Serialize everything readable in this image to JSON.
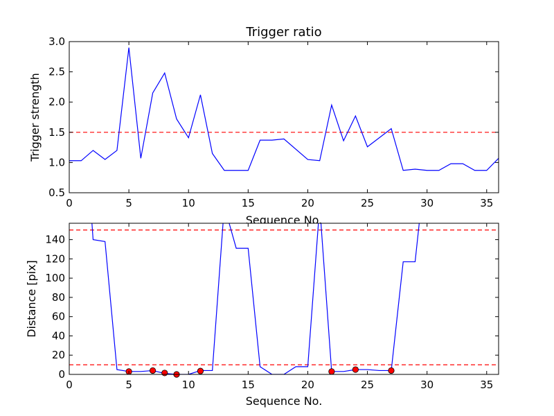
{
  "chart_data": [
    {
      "type": "line",
      "title": "Trigger ratio",
      "xlabel": "Sequence No.",
      "ylabel": "Trigger strength",
      "xlim": [
        0,
        36
      ],
      "ylim": [
        0.5,
        3.0
      ],
      "xticks": [
        0,
        5,
        10,
        15,
        20,
        25,
        30,
        35
      ],
      "xtick_labels": [
        "0",
        "5",
        "10",
        "15",
        "20",
        "25",
        "30",
        "35"
      ],
      "yticks": [
        0.5,
        1.0,
        1.5,
        2.0,
        2.5,
        3.0
      ],
      "ytick_labels": [
        "0.5",
        "1.0",
        "1.5",
        "2.0",
        "2.5",
        "3.0"
      ],
      "grid": false,
      "series": [
        {
          "color": "#0000ff",
          "style": "line",
          "x": [
            0,
            1,
            2,
            3,
            4,
            5,
            6,
            7,
            8,
            9,
            10,
            11,
            12,
            13,
            14,
            15,
            16,
            17,
            18,
            20,
            21,
            22,
            23,
            24,
            25,
            27,
            28,
            29,
            30,
            31,
            32,
            33,
            34,
            35,
            36
          ],
          "y": [
            1.03,
            1.03,
            1.2,
            1.05,
            1.2,
            2.9,
            1.07,
            2.15,
            2.48,
            1.72,
            1.41,
            2.12,
            1.15,
            0.87,
            0.87,
            0.87,
            1.37,
            1.37,
            1.39,
            1.05,
            1.03,
            1.95,
            1.36,
            1.77,
            1.26,
            1.56,
            0.87,
            0.89,
            0.87,
            0.87,
            0.98,
            0.98,
            0.87,
            0.87,
            1.07
          ]
        }
      ],
      "hlines": [
        {
          "y": 1.5,
          "color": "#ff0000",
          "style": "dashed"
        }
      ]
    },
    {
      "type": "line",
      "title": "",
      "xlabel": "Sequence No.",
      "ylabel": "Distance [pix]",
      "xlim": [
        0,
        36
      ],
      "ylim": [
        0,
        157
      ],
      "xticks": [
        0,
        5,
        10,
        15,
        20,
        25,
        30,
        35
      ],
      "xtick_labels": [
        "0",
        "5",
        "10",
        "15",
        "20",
        "25",
        "30",
        "35"
      ],
      "yticks": [
        0,
        20,
        40,
        60,
        80,
        100,
        120,
        140
      ],
      "ytick_labels": [
        "0",
        "20",
        "40",
        "60",
        "80",
        "100",
        "120",
        "140"
      ],
      "grid": false,
      "series": [
        {
          "color": "#0000ff",
          "style": "line",
          "x": [
            1.8,
            2,
            3,
            4,
            5,
            6,
            7,
            8,
            9,
            10,
            11,
            12,
            13,
            14,
            15,
            16,
            17,
            18,
            19,
            20,
            21,
            22,
            23,
            24,
            25,
            26,
            27,
            28,
            29,
            29.5
          ],
          "y": [
            175,
            140,
            138,
            5,
            3,
            3,
            4,
            1,
            0,
            0,
            4,
            4,
            175,
            131,
            131,
            8,
            0,
            0,
            8,
            8,
            175,
            3,
            3,
            5,
            5,
            4,
            4,
            117,
            117,
            175
          ]
        },
        {
          "color": "#ff0000",
          "style": "markers",
          "x": [
            5,
            7,
            8,
            9,
            11,
            22,
            24,
            27
          ],
          "y": [
            3,
            4,
            1.5,
            0,
            3.5,
            3,
            5,
            4
          ]
        }
      ],
      "hlines": [
        {
          "y": 150,
          "color": "#ff0000",
          "style": "dashed"
        },
        {
          "y": 10,
          "color": "#ff0000",
          "style": "dashed"
        }
      ]
    }
  ]
}
